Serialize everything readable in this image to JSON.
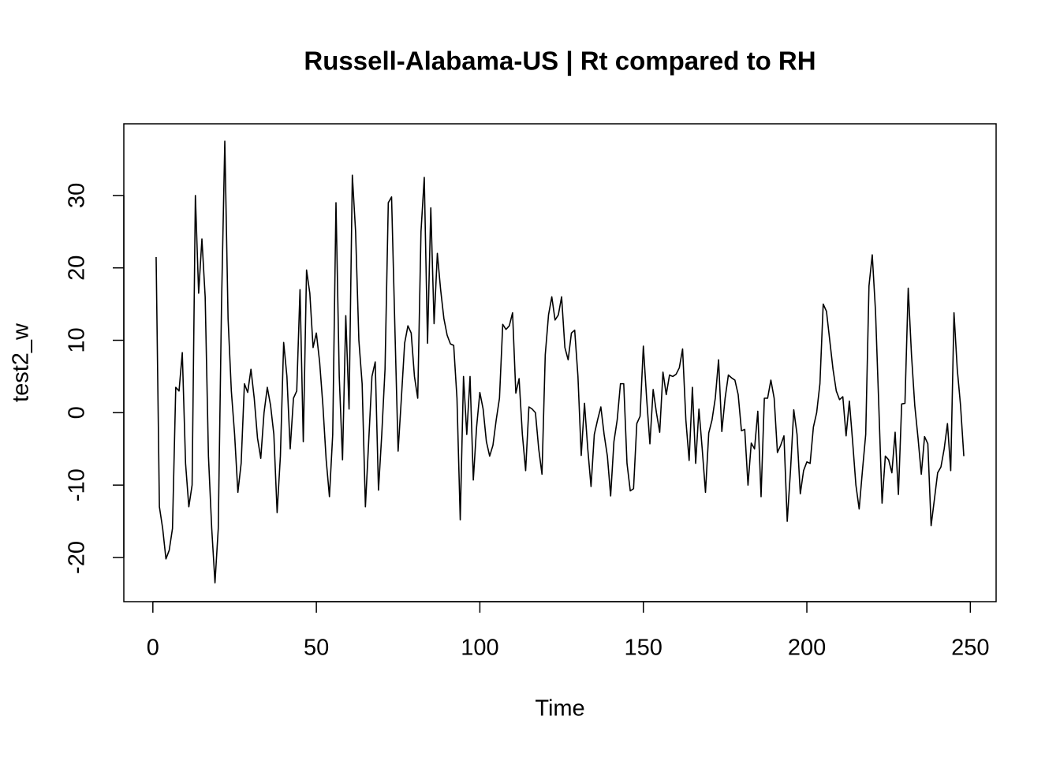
{
  "chart_data": {
    "type": "line",
    "title": "Russell-Alabama-US | Rt compared to RH",
    "x_label": "Time",
    "y_label": "test2_w",
    "color": "#000000",
    "x": [
      1,
      2,
      3,
      4,
      5,
      6,
      7,
      8,
      9,
      10,
      11,
      12,
      13,
      14,
      15,
      16,
      17,
      18,
      19,
      20,
      21,
      22,
      23,
      24,
      25,
      26,
      27,
      28,
      29,
      30,
      31,
      32,
      33,
      34,
      35,
      36,
      37,
      38,
      39,
      40,
      41,
      42,
      43,
      44,
      45,
      46,
      47,
      48,
      49,
      50,
      51,
      52,
      53,
      54,
      55,
      56,
      57,
      58,
      59,
      60,
      61,
      62,
      63,
      64,
      65,
      66,
      67,
      68,
      69,
      70,
      71,
      72,
      73,
      74,
      75,
      76,
      77,
      78,
      79,
      80,
      81,
      82,
      83,
      84,
      85,
      86,
      87,
      88,
      89,
      90,
      91,
      92,
      93,
      94,
      95,
      96,
      97,
      98,
      99,
      100,
      101,
      102,
      103,
      104,
      105,
      106,
      107,
      108,
      109,
      110,
      111,
      112,
      113,
      114,
      115,
      116,
      117,
      118,
      119,
      120,
      121,
      122,
      123,
      124,
      125,
      126,
      127,
      128,
      129,
      130,
      131,
      132,
      133,
      134,
      135,
      136,
      137,
      138,
      139,
      140,
      141,
      142,
      143,
      144,
      145,
      146,
      147,
      148,
      149,
      150,
      151,
      152,
      153,
      154,
      155,
      156,
      157,
      158,
      159,
      160,
      161,
      162,
      163,
      164,
      165,
      166,
      167,
      168,
      169,
      170,
      171,
      172,
      173,
      174,
      175,
      176,
      177,
      178,
      179,
      180,
      181,
      182,
      183,
      184,
      185,
      186,
      187,
      188,
      189,
      190,
      191,
      192,
      193,
      194,
      195,
      196,
      197,
      198,
      199,
      200,
      201,
      202,
      203,
      204,
      205,
      206,
      207,
      208,
      209,
      210,
      211,
      212,
      213,
      214,
      215,
      216,
      217,
      218,
      219,
      220,
      221,
      222,
      223,
      224,
      225,
      226,
      227,
      228,
      229,
      230,
      231,
      232,
      233,
      234,
      235,
      236,
      237,
      238,
      239,
      240,
      241,
      242,
      243,
      244,
      245,
      246,
      247,
      248
    ],
    "values": [
      21.5,
      -13,
      -16,
      -20.2,
      -19,
      -16,
      3.5,
      3,
      8.3,
      -7,
      -13,
      -10,
      30,
      16.5,
      24,
      16,
      -6,
      -16,
      -23.5,
      -16,
      15,
      37.5,
      13,
      3,
      -3,
      -11,
      -7,
      4,
      2.8,
      6,
      2,
      -3.5,
      -6.3,
      0,
      3.5,
      1,
      -3,
      -13.8,
      -6,
      9.7,
      5,
      -5,
      2,
      3,
      17,
      -4,
      19.7,
      16.5,
      9,
      11,
      7,
      1,
      -6.5,
      -11.6,
      -3,
      29,
      5,
      -6.5,
      13.4,
      0.5,
      32.8,
      25,
      10,
      4,
      -13,
      -4,
      5,
      7,
      -10.7,
      -3,
      6,
      29,
      29.8,
      12,
      -5.3,
      2,
      9.6,
      12,
      11,
      5,
      2,
      25,
      32.5,
      9.6,
      28.3,
      12.3,
      22,
      17,
      13,
      10.7,
      9.5,
      9.3,
      2,
      -14.8,
      5,
      -3,
      5,
      -9.3,
      -2,
      2.8,
      0.5,
      -4,
      -6,
      -4.5,
      -1,
      2,
      12.2,
      11.5,
      12,
      13.8,
      2.7,
      4.7,
      -3,
      -8,
      0.8,
      0.5,
      0,
      -5,
      -8.5,
      8,
      13.5,
      16,
      12.8,
      13.5,
      16,
      9,
      7.3,
      11,
      11.4,
      5,
      -5.9,
      1.3,
      -5,
      -10.2,
      -3,
      -1,
      0.8,
      -3,
      -6,
      -11.5,
      -4,
      -1,
      4,
      4,
      -7,
      -10.8,
      -10.5,
      -1.5,
      -0.5,
      9.2,
      2,
      -4.3,
      3.2,
      0,
      -2.7,
      5.6,
      2.5,
      5.2,
      5,
      5.3,
      6.2,
      8.8,
      -1,
      -6.6,
      3.5,
      -7,
      0.5,
      -5,
      -11,
      -2.8,
      -1,
      2,
      7.3,
      -2.6,
      2,
      5.2,
      4.8,
      4.5,
      2.5,
      -2.5,
      -2.3,
      -10,
      -4.2,
      -5,
      0.2,
      -11.6,
      2,
      2,
      4.5,
      2,
      -5.5,
      -4.5,
      -3.2,
      -15,
      -8,
      0.4,
      -3,
      -11.2,
      -8,
      -6.8,
      -7,
      -2,
      0,
      4,
      15,
      14,
      10,
      6,
      3,
      1.8,
      2.2,
      -3.2,
      1.6,
      -4,
      -10,
      -13.3,
      -8,
      -3,
      17.5,
      21.8,
      14,
      1,
      -12.5,
      -6,
      -6.5,
      -8.3,
      -2.7,
      -11.3,
      1.2,
      1.3,
      17.2,
      8,
      1,
      -3.5,
      -8.5,
      -3.3,
      -4.3,
      -15.6,
      -12,
      -8.3,
      -7.5,
      -5,
      -1.5,
      -8,
      13.8,
      6,
      1,
      -6
    ],
    "xlim": [
      -8.88,
      257.88
    ],
    "ylim": [
      -26.1,
      39.9
    ],
    "xticks": [
      0,
      50,
      100,
      150,
      200,
      250
    ],
    "yticks": [
      -20,
      -10,
      0,
      10,
      20,
      30
    ]
  }
}
